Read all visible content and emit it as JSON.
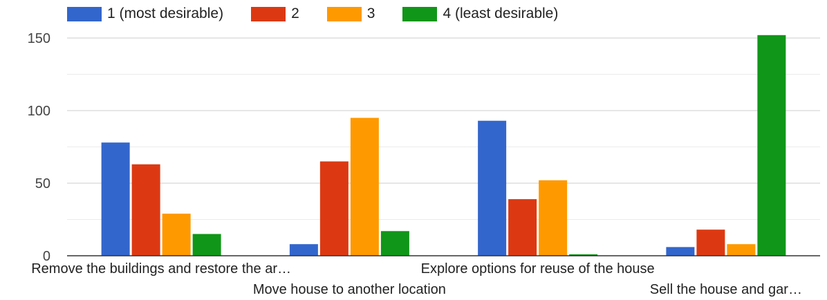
{
  "chart_data": {
    "type": "bar",
    "categories": [
      "Remove the buildings and restore the ar…",
      "Move house to another location",
      "Explore options for reuse of the house",
      "Sell the house and gar…"
    ],
    "series": [
      {
        "name": "1 (most desirable)",
        "color": "#3366cc",
        "values": [
          78,
          8,
          93,
          6
        ]
      },
      {
        "name": "2",
        "color": "#dc3912",
        "values": [
          63,
          65,
          39,
          18
        ]
      },
      {
        "name": "3",
        "color": "#ff9900",
        "values": [
          29,
          95,
          52,
          8
        ]
      },
      {
        "name": "4 (least desirable)",
        "color": "#109618",
        "values": [
          15,
          17,
          1,
          152
        ]
      }
    ],
    "ylim": [
      0,
      160
    ],
    "yticks": [
      0,
      50,
      100,
      150
    ],
    "grid": true,
    "legend_position": "top"
  }
}
